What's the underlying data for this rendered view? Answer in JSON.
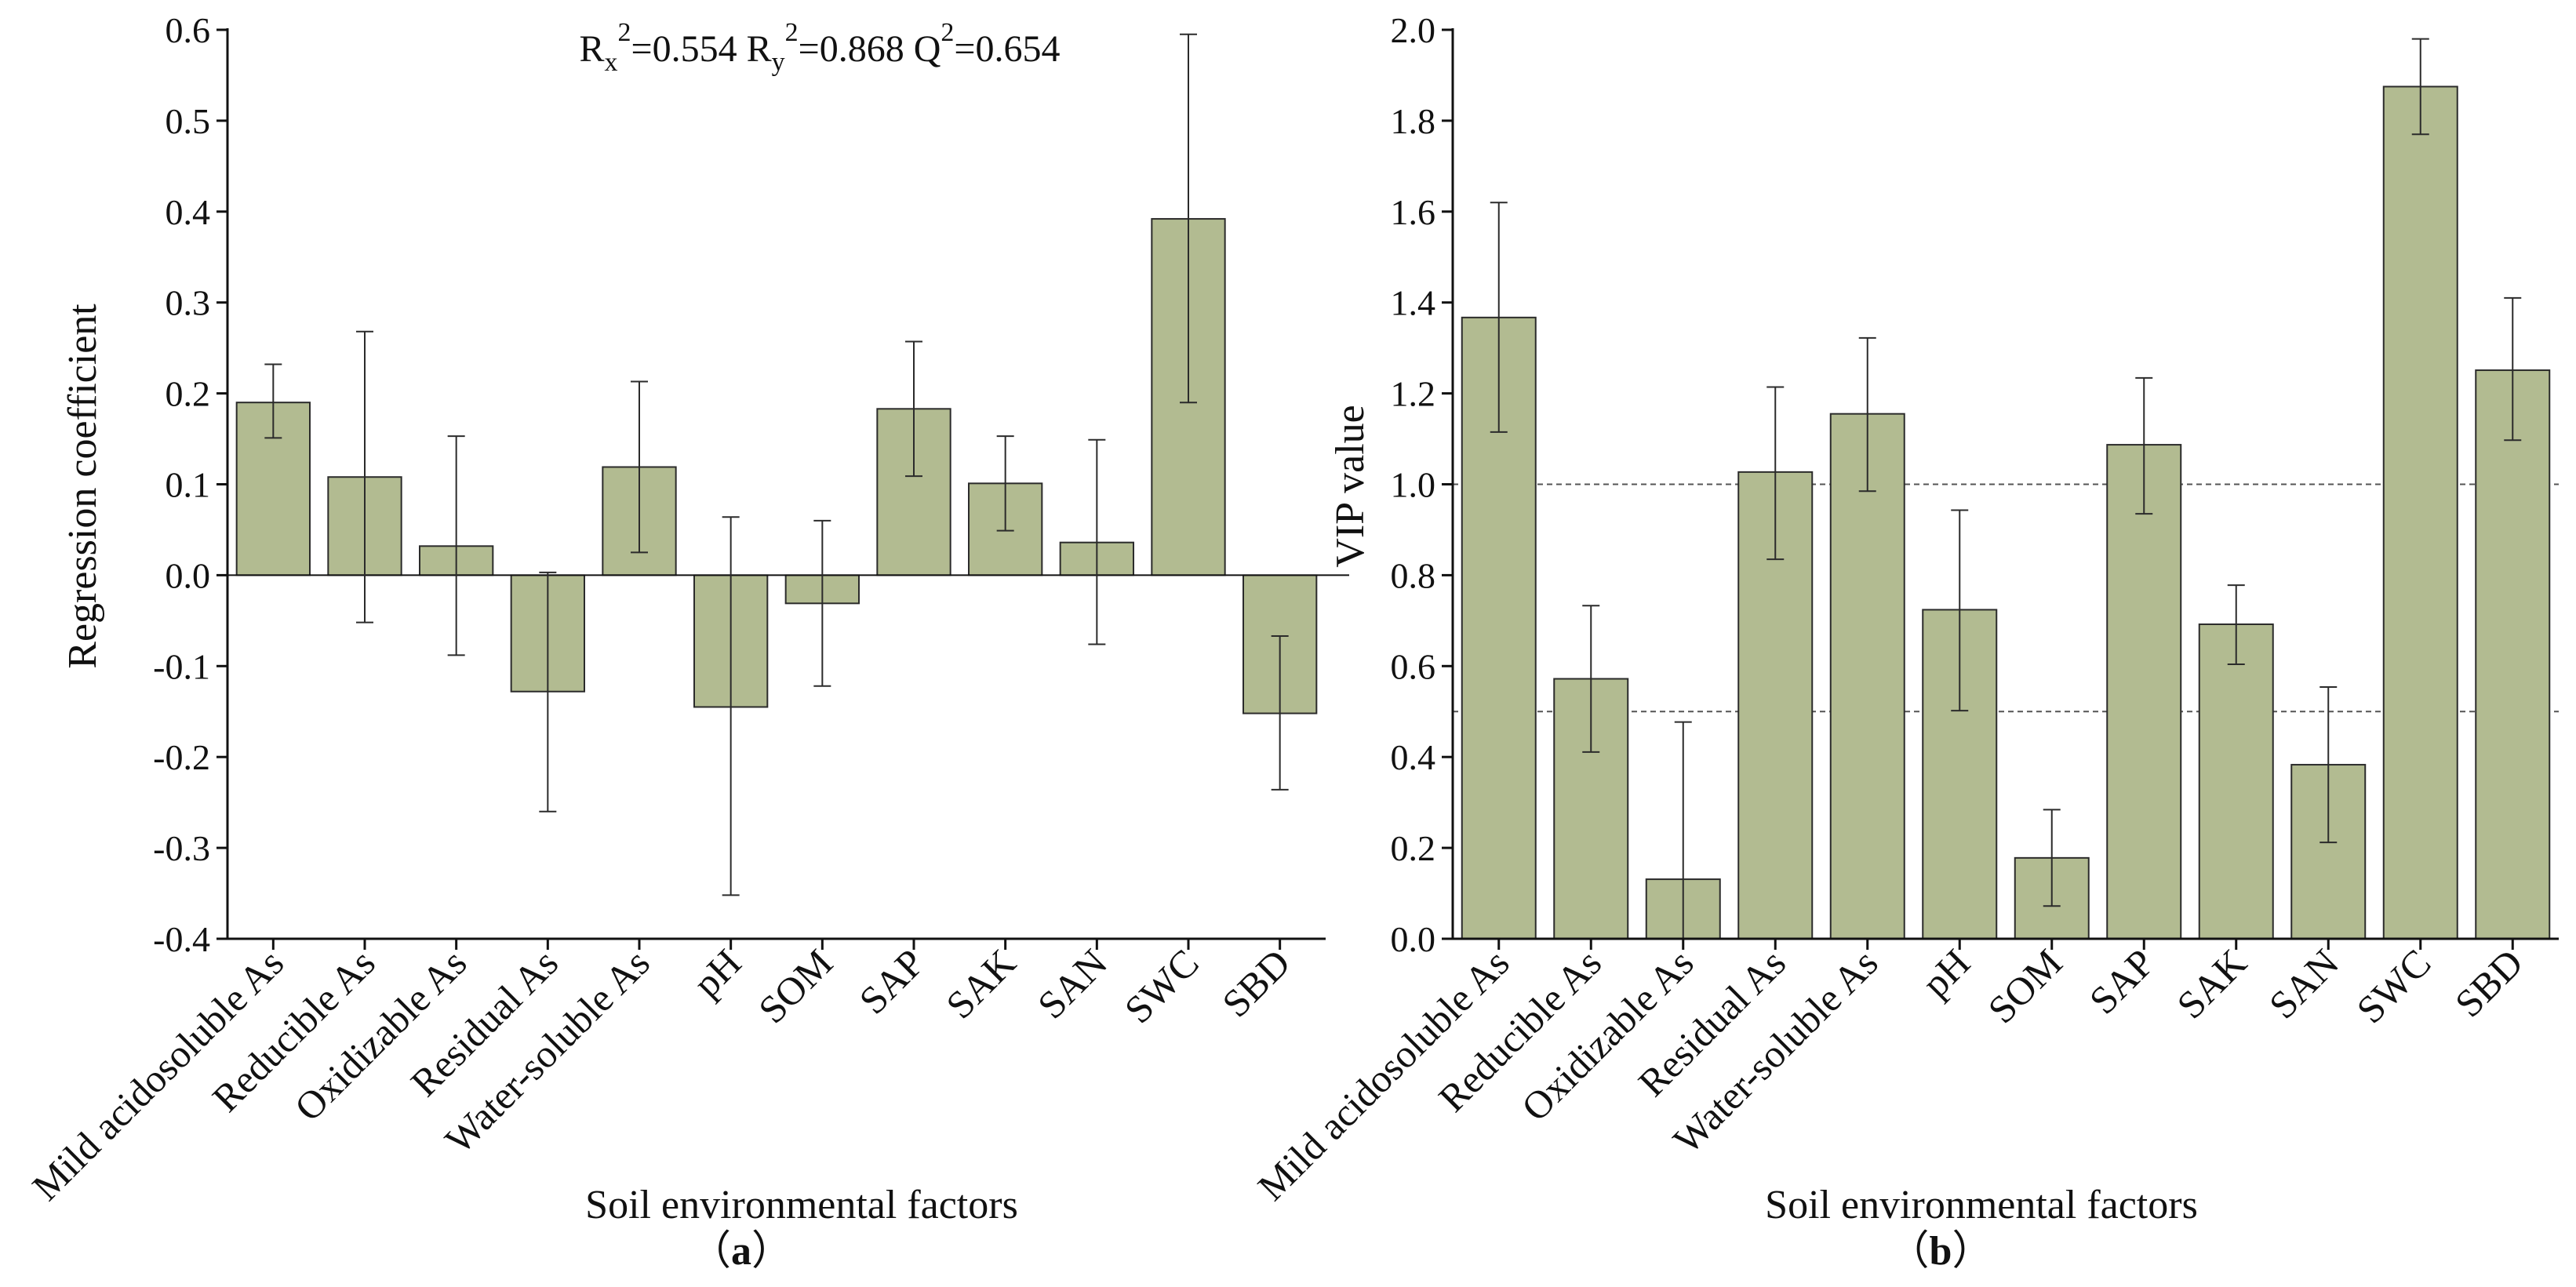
{
  "colors": {
    "bar_fill": "#b2bb91",
    "bar_stroke": "#2b2b2b",
    "axis": "#111111",
    "threshold": "#555555"
  },
  "chart_data": [
    {
      "id": "a",
      "type": "bar",
      "panel_label": "a",
      "stats_text": {
        "rx_base": "R",
        "rx_sub": "x",
        "rx_sup": "2",
        "rx_val": "=0.554 ",
        "ry_base": "R",
        "ry_sub": "y",
        "ry_sup": "2",
        "ry_val": "=0.868 ",
        "q_base": "Q",
        "q_sup": "2",
        "q_val": "=0.654"
      },
      "xlabel": "Soil environmental factors",
      "ylabel": "Regression coefficient",
      "ylim": [
        -0.4,
        0.6
      ],
      "yticks": [
        -0.4,
        -0.3,
        -0.2,
        -0.1,
        0.0,
        0.1,
        0.2,
        0.3,
        0.4,
        0.5,
        0.6
      ],
      "ytick_labels": [
        "-0.4",
        "-0.3",
        "-0.2",
        "-0.1",
        "0.0",
        "0.1",
        "0.2",
        "0.3",
        "0.4",
        "0.5",
        "0.6"
      ],
      "zero_line": true,
      "categories": [
        "Mild acidosoluble As",
        "Reducible As",
        "Oxidizable As",
        "Residual As",
        "Water-soluble As",
        "pH",
        "SOM",
        "SAP",
        "SAK",
        "SAN",
        "SWC",
        "SBD"
      ],
      "values": [
        0.19,
        0.108,
        0.032,
        -0.128,
        0.119,
        -0.145,
        -0.031,
        0.183,
        0.101,
        0.036,
        0.392,
        -0.152
      ],
      "error_low": [
        0.151,
        -0.052,
        -0.088,
        -0.26,
        0.025,
        -0.352,
        -0.122,
        0.109,
        0.049,
        -0.076,
        0.19,
        -0.236
      ],
      "error_high": [
        0.232,
        0.268,
        0.153,
        0.003,
        0.213,
        0.064,
        0.06,
        0.257,
        0.153,
        0.149,
        0.595,
        -0.067
      ]
    },
    {
      "id": "b",
      "type": "bar",
      "panel_label": "b",
      "xlabel": "Soil environmental factors",
      "ylabel": "VIP value",
      "ylim": [
        0.0,
        2.0
      ],
      "yticks": [
        0.0,
        0.2,
        0.4,
        0.6,
        0.8,
        1.0,
        1.2,
        1.4,
        1.6,
        1.8,
        2.0
      ],
      "ytick_labels": [
        "0.0",
        "0.2",
        "0.4",
        "0.6",
        "0.8",
        "1.0",
        "1.2",
        "1.4",
        "1.6",
        "1.8",
        "2.0"
      ],
      "reference_lines": [
        1.0,
        0.5
      ],
      "categories": [
        "Mild acidosoluble As",
        "Reducible As",
        "Oxidizable As",
        "Residual As",
        "Water-soluble As",
        "pH",
        "SOM",
        "SAP",
        "SAK",
        "SAN",
        "SWC",
        "SBD"
      ],
      "values": [
        1.367,
        0.572,
        0.131,
        1.027,
        1.155,
        0.724,
        0.178,
        1.087,
        0.692,
        0.383,
        1.875,
        1.251
      ],
      "error_low": [
        1.115,
        0.411,
        0.0,
        0.835,
        0.985,
        0.502,
        0.072,
        0.935,
        0.604,
        0.212,
        1.77,
        1.097
      ],
      "error_high": [
        1.62,
        0.733,
        0.477,
        1.214,
        1.322,
        0.943,
        0.284,
        1.234,
        0.778,
        0.554,
        1.98,
        1.41
      ]
    }
  ]
}
